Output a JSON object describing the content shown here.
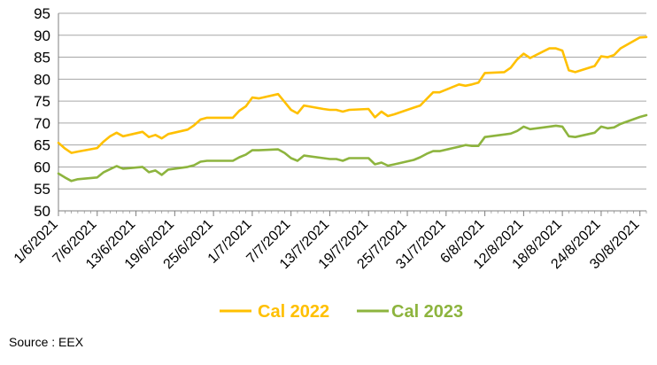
{
  "chart_data": {
    "type": "line",
    "title": "",
    "xlabel": "",
    "ylabel": "",
    "ylim": [
      50,
      95
    ],
    "yticks": [
      50,
      55,
      60,
      65,
      70,
      75,
      80,
      85,
      90,
      95
    ],
    "grid": "horizontal",
    "legend_position": "bottom",
    "x_tick_labels": [
      "1/6/2021",
      "7/6/2021",
      "13/6/2021",
      "19/6/2021",
      "25/6/2021",
      "1/7/2021",
      "7/7/2021",
      "13/7/2021",
      "19/7/2021",
      "25/7/2021",
      "31/7/2021",
      "6/8/2021",
      "12/8/2021",
      "18/8/2021",
      "24/8/2021",
      "30/8/2021"
    ],
    "x_range": [
      "2021-06-01",
      "2021-08-31"
    ],
    "series": [
      {
        "name": "Cal 2022",
        "color": "#FFC000",
        "points": [
          [
            "2021-06-01",
            65.5
          ],
          [
            "2021-06-02",
            64.2
          ],
          [
            "2021-06-03",
            63.2
          ],
          [
            "2021-06-04",
            63.5
          ],
          [
            "2021-06-07",
            64.3
          ],
          [
            "2021-06-08",
            65.8
          ],
          [
            "2021-06-09",
            67.0
          ],
          [
            "2021-06-10",
            67.8
          ],
          [
            "2021-06-11",
            67.0
          ],
          [
            "2021-06-14",
            68.0
          ],
          [
            "2021-06-15",
            66.8
          ],
          [
            "2021-06-16",
            67.3
          ],
          [
            "2021-06-17",
            66.5
          ],
          [
            "2021-06-18",
            67.5
          ],
          [
            "2021-06-21",
            68.5
          ],
          [
            "2021-06-22",
            69.5
          ],
          [
            "2021-06-23",
            70.8
          ],
          [
            "2021-06-24",
            71.2
          ],
          [
            "2021-06-25",
            71.2
          ],
          [
            "2021-06-28",
            71.2
          ],
          [
            "2021-06-29",
            72.8
          ],
          [
            "2021-06-30",
            73.8
          ],
          [
            "2021-07-01",
            75.8
          ],
          [
            "2021-07-02",
            75.6
          ],
          [
            "2021-07-05",
            76.6
          ],
          [
            "2021-07-06",
            74.8
          ],
          [
            "2021-07-07",
            73.0
          ],
          [
            "2021-07-08",
            72.2
          ],
          [
            "2021-07-09",
            74.0
          ],
          [
            "2021-07-12",
            73.2
          ],
          [
            "2021-07-13",
            73.0
          ],
          [
            "2021-07-14",
            73.0
          ],
          [
            "2021-07-15",
            72.6
          ],
          [
            "2021-07-16",
            73.0
          ],
          [
            "2021-07-19",
            73.2
          ],
          [
            "2021-07-20",
            71.3
          ],
          [
            "2021-07-21",
            72.6
          ],
          [
            "2021-07-22",
            71.6
          ],
          [
            "2021-07-23",
            72.0
          ],
          [
            "2021-07-26",
            73.5
          ],
          [
            "2021-07-27",
            74.0
          ],
          [
            "2021-07-28",
            75.5
          ],
          [
            "2021-07-29",
            77.0
          ],
          [
            "2021-07-30",
            77.0
          ],
          [
            "2021-08-02",
            78.8
          ],
          [
            "2021-08-03",
            78.5
          ],
          [
            "2021-08-04",
            78.8
          ],
          [
            "2021-08-05",
            79.2
          ],
          [
            "2021-08-06",
            81.4
          ],
          [
            "2021-08-09",
            81.6
          ],
          [
            "2021-08-10",
            82.6
          ],
          [
            "2021-08-11",
            84.5
          ],
          [
            "2021-08-12",
            85.8
          ],
          [
            "2021-08-13",
            84.8
          ],
          [
            "2021-08-16",
            87.0
          ],
          [
            "2021-08-17",
            87.0
          ],
          [
            "2021-08-18",
            86.5
          ],
          [
            "2021-08-19",
            82.0
          ],
          [
            "2021-08-20",
            81.6
          ],
          [
            "2021-08-23",
            83.0
          ],
          [
            "2021-08-24",
            85.2
          ],
          [
            "2021-08-25",
            85.0
          ],
          [
            "2021-08-26",
            85.5
          ],
          [
            "2021-08-27",
            87.0
          ],
          [
            "2021-08-30",
            89.5
          ],
          [
            "2021-08-31",
            89.6
          ]
        ]
      },
      {
        "name": "Cal 2023",
        "color": "#8DB43E",
        "points": [
          [
            "2021-06-01",
            58.5
          ],
          [
            "2021-06-02",
            57.6
          ],
          [
            "2021-06-03",
            56.8
          ],
          [
            "2021-06-04",
            57.2
          ],
          [
            "2021-06-07",
            57.6
          ],
          [
            "2021-06-08",
            58.8
          ],
          [
            "2021-06-09",
            59.5
          ],
          [
            "2021-06-10",
            60.2
          ],
          [
            "2021-06-11",
            59.6
          ],
          [
            "2021-06-14",
            60.0
          ],
          [
            "2021-06-15",
            58.8
          ],
          [
            "2021-06-16",
            59.2
          ],
          [
            "2021-06-17",
            58.2
          ],
          [
            "2021-06-18",
            59.4
          ],
          [
            "2021-06-21",
            60.0
          ],
          [
            "2021-06-22",
            60.4
          ],
          [
            "2021-06-23",
            61.2
          ],
          [
            "2021-06-24",
            61.4
          ],
          [
            "2021-06-25",
            61.4
          ],
          [
            "2021-06-28",
            61.4
          ],
          [
            "2021-06-29",
            62.2
          ],
          [
            "2021-06-30",
            62.8
          ],
          [
            "2021-07-01",
            63.8
          ],
          [
            "2021-07-02",
            63.8
          ],
          [
            "2021-07-05",
            64.0
          ],
          [
            "2021-07-06",
            63.2
          ],
          [
            "2021-07-07",
            62.0
          ],
          [
            "2021-07-08",
            61.4
          ],
          [
            "2021-07-09",
            62.6
          ],
          [
            "2021-07-12",
            62.0
          ],
          [
            "2021-07-13",
            61.8
          ],
          [
            "2021-07-14",
            61.8
          ],
          [
            "2021-07-15",
            61.4
          ],
          [
            "2021-07-16",
            62.0
          ],
          [
            "2021-07-19",
            62.0
          ],
          [
            "2021-07-20",
            60.6
          ],
          [
            "2021-07-21",
            61.0
          ],
          [
            "2021-07-22",
            60.3
          ],
          [
            "2021-07-23",
            60.6
          ],
          [
            "2021-07-26",
            61.6
          ],
          [
            "2021-07-27",
            62.2
          ],
          [
            "2021-07-28",
            63.0
          ],
          [
            "2021-07-29",
            63.6
          ],
          [
            "2021-07-30",
            63.6
          ],
          [
            "2021-08-02",
            64.6
          ],
          [
            "2021-08-03",
            65.0
          ],
          [
            "2021-08-04",
            64.8
          ],
          [
            "2021-08-05",
            64.8
          ],
          [
            "2021-08-06",
            66.8
          ],
          [
            "2021-08-09",
            67.4
          ],
          [
            "2021-08-10",
            67.6
          ],
          [
            "2021-08-11",
            68.2
          ],
          [
            "2021-08-12",
            69.2
          ],
          [
            "2021-08-13",
            68.6
          ],
          [
            "2021-08-16",
            69.2
          ],
          [
            "2021-08-17",
            69.4
          ],
          [
            "2021-08-18",
            69.2
          ],
          [
            "2021-08-19",
            67.0
          ],
          [
            "2021-08-20",
            66.8
          ],
          [
            "2021-08-23",
            67.8
          ],
          [
            "2021-08-24",
            69.2
          ],
          [
            "2021-08-25",
            68.8
          ],
          [
            "2021-08-26",
            69.0
          ],
          [
            "2021-08-27",
            69.8
          ],
          [
            "2021-08-30",
            71.4
          ],
          [
            "2021-08-31",
            71.8
          ]
        ]
      }
    ]
  },
  "footer": {
    "source": "Source : EEX"
  }
}
